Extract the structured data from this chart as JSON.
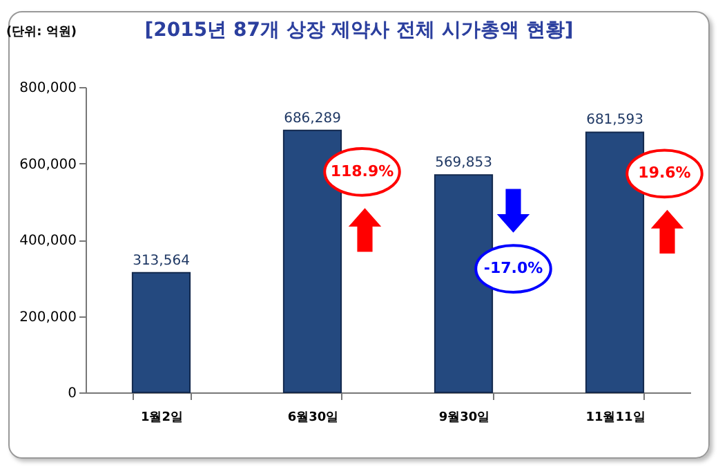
{
  "chart_data": {
    "type": "bar",
    "title": "[2015년 87개 상장 제약사 전체 시가총액 현황]",
    "ylabel": "(단위: 억원)",
    "categories": [
      "1월2일",
      "6월30일",
      "9월30일",
      "11월11일"
    ],
    "values": [
      313564,
      686289,
      569853,
      681593
    ],
    "color": "#24497f",
    "value_labels": [
      "313,564",
      "686,289",
      "569,853",
      "681,593"
    ],
    "ylim": [
      0,
      800000
    ],
    "yticks": [
      0,
      {
        "value": 200000,
        "label": "200,000"
      },
      {
        "value": 400000,
        "label": "400,000"
      },
      {
        "value": 600000,
        "label": "600,000"
      },
      {
        "value": 800000,
        "label": "800,000"
      }
    ],
    "grid": false,
    "annotations": [
      "118.9%",
      "-17.0%",
      "19.6%"
    ]
  }
}
